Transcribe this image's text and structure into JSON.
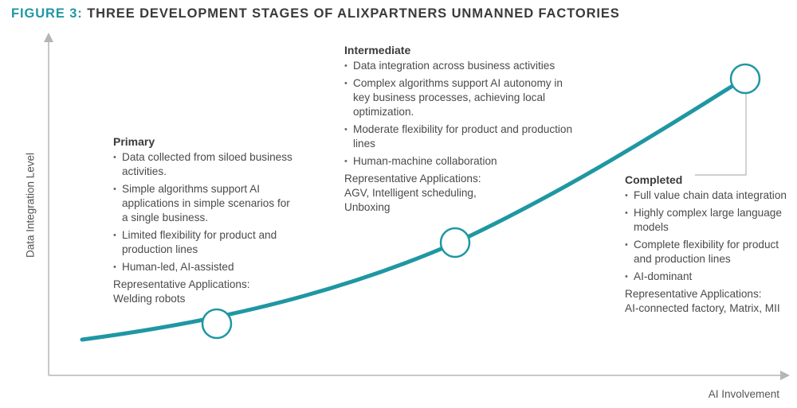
{
  "figure": {
    "label": "FIGURE 3:",
    "title": "THREE DEVELOPMENT STAGES OF ALIXPARTNERS UNMANNED FACTORIES"
  },
  "axes": {
    "y_label": "Data Integration Level",
    "x_label": "AI Involvement"
  },
  "colors": {
    "accent": "#1f97a3",
    "axis": "#b5b5b5",
    "text": "#4a4a4a"
  },
  "stages": [
    {
      "name": "Primary",
      "bullets": [
        "Data collected from siloed business activities.",
        "Simple algorithms support AI applications in simple scenarios for a single business.",
        "Limited flexibility for product and production lines",
        "Human-led, AI-assisted"
      ],
      "rep_label": "Representative Applications:",
      "rep_value": "Welding robots"
    },
    {
      "name": "Intermediate",
      "bullets": [
        "Data integration across business activities",
        "Complex algorithms support AI autonomy in key business processes, achieving local optimization.",
        "Moderate flexibility for product and production lines",
        "Human-machine collaboration"
      ],
      "rep_label": "Representative Applications:",
      "rep_value": "AGV, Intelligent scheduling, Unboxing"
    },
    {
      "name": "Completed",
      "bullets": [
        "Full value chain data integration",
        "Highly complex large language models",
        "Complete flexibility for product and production lines",
        "AI-dominant"
      ],
      "rep_label": "Representative Applications:",
      "rep_value": "AI-connected factory, Matrix, MII"
    }
  ]
}
